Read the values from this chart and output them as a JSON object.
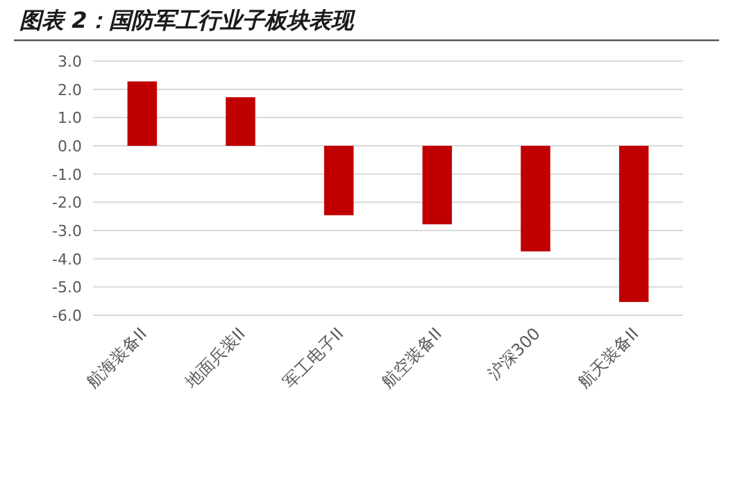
{
  "chart_data": {
    "type": "bar",
    "title": "图表 2：国防军工行业子板块表现",
    "categories": [
      "航海装备II",
      "地面兵装II",
      "军工电子II",
      "航空装备II",
      "沪深300",
      "航天装备II"
    ],
    "values": [
      2.28,
      1.72,
      -2.46,
      -2.78,
      -3.74,
      -5.53
    ],
    "color": "#c00000",
    "ylim": [
      -6,
      3
    ],
    "yticks": [
      {
        "value": 3,
        "label": "3.0"
      },
      {
        "value": 2,
        "label": "2.0"
      },
      {
        "value": 1,
        "label": "1.0"
      },
      {
        "value": 0,
        "label": "0.0"
      },
      {
        "value": -1,
        "label": "-1.0"
      },
      {
        "value": -2,
        "label": "-2.0"
      },
      {
        "value": -3,
        "label": "-3.0"
      },
      {
        "value": -4,
        "label": "-4.0"
      },
      {
        "value": -5,
        "label": "-5.0"
      },
      {
        "value": -6,
        "label": "-6.0"
      }
    ],
    "grid": "y"
  }
}
